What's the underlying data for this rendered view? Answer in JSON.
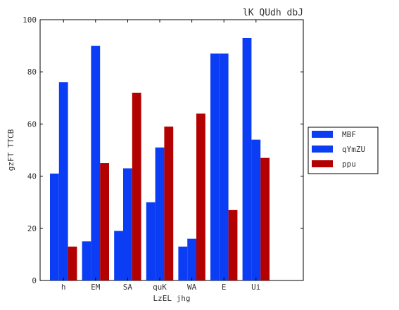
{
  "chart_data": {
    "type": "bar",
    "title": "lK QUdh dbJ",
    "xlabel": "LzEL jhg",
    "ylabel": "gzFT TTCB",
    "categories": [
      "h",
      "EM",
      "SA",
      "quK",
      "WA",
      "E",
      "Ui"
    ],
    "ylim": [
      0,
      100
    ],
    "yticks": [
      0,
      20,
      40,
      60,
      80,
      100
    ],
    "grid": false,
    "legend_position": "right, outside plot",
    "series": [
      {
        "name": "MBF",
        "color": "#0b3df5",
        "values": [
          41,
          15,
          19,
          30,
          13,
          87,
          93
        ]
      },
      {
        "name": "qYmZU",
        "color": "#0b3df5",
        "values": [
          76,
          90,
          43,
          51,
          16,
          87,
          54
        ]
      },
      {
        "name": "ppu",
        "color": "#b30000",
        "values": [
          13,
          45,
          72,
          59,
          64,
          27,
          47
        ]
      }
    ]
  }
}
